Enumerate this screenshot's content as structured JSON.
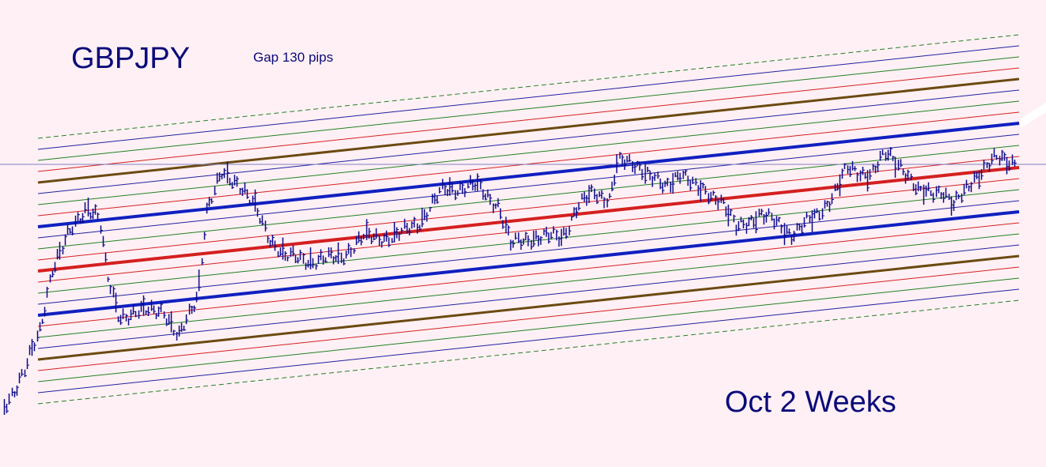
{
  "header": {
    "symbol": "GBPJPY",
    "note": "Gap 130 pips"
  },
  "caption": "Oct 2 Weeks"
}
